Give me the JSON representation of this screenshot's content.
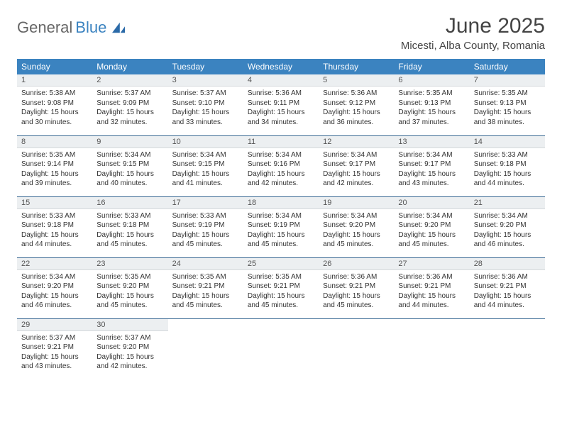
{
  "logo": {
    "part1": "General",
    "part2": "Blue"
  },
  "title": "June 2025",
  "location": "Micesti, Alba County, Romania",
  "header_bg": "#3b83c0",
  "weekdays": [
    "Sunday",
    "Monday",
    "Tuesday",
    "Wednesday",
    "Thursday",
    "Friday",
    "Saturday"
  ],
  "days": [
    {
      "n": "1",
      "sr": "5:38 AM",
      "ss": "9:08 PM",
      "dl": "15 hours and 30 minutes."
    },
    {
      "n": "2",
      "sr": "5:37 AM",
      "ss": "9:09 PM",
      "dl": "15 hours and 32 minutes."
    },
    {
      "n": "3",
      "sr": "5:37 AM",
      "ss": "9:10 PM",
      "dl": "15 hours and 33 minutes."
    },
    {
      "n": "4",
      "sr": "5:36 AM",
      "ss": "9:11 PM",
      "dl": "15 hours and 34 minutes."
    },
    {
      "n": "5",
      "sr": "5:36 AM",
      "ss": "9:12 PM",
      "dl": "15 hours and 36 minutes."
    },
    {
      "n": "6",
      "sr": "5:35 AM",
      "ss": "9:13 PM",
      "dl": "15 hours and 37 minutes."
    },
    {
      "n": "7",
      "sr": "5:35 AM",
      "ss": "9:13 PM",
      "dl": "15 hours and 38 minutes."
    },
    {
      "n": "8",
      "sr": "5:35 AM",
      "ss": "9:14 PM",
      "dl": "15 hours and 39 minutes."
    },
    {
      "n": "9",
      "sr": "5:34 AM",
      "ss": "9:15 PM",
      "dl": "15 hours and 40 minutes."
    },
    {
      "n": "10",
      "sr": "5:34 AM",
      "ss": "9:15 PM",
      "dl": "15 hours and 41 minutes."
    },
    {
      "n": "11",
      "sr": "5:34 AM",
      "ss": "9:16 PM",
      "dl": "15 hours and 42 minutes."
    },
    {
      "n": "12",
      "sr": "5:34 AM",
      "ss": "9:17 PM",
      "dl": "15 hours and 42 minutes."
    },
    {
      "n": "13",
      "sr": "5:34 AM",
      "ss": "9:17 PM",
      "dl": "15 hours and 43 minutes."
    },
    {
      "n": "14",
      "sr": "5:33 AM",
      "ss": "9:18 PM",
      "dl": "15 hours and 44 minutes."
    },
    {
      "n": "15",
      "sr": "5:33 AM",
      "ss": "9:18 PM",
      "dl": "15 hours and 44 minutes."
    },
    {
      "n": "16",
      "sr": "5:33 AM",
      "ss": "9:18 PM",
      "dl": "15 hours and 45 minutes."
    },
    {
      "n": "17",
      "sr": "5:33 AM",
      "ss": "9:19 PM",
      "dl": "15 hours and 45 minutes."
    },
    {
      "n": "18",
      "sr": "5:34 AM",
      "ss": "9:19 PM",
      "dl": "15 hours and 45 minutes."
    },
    {
      "n": "19",
      "sr": "5:34 AM",
      "ss": "9:20 PM",
      "dl": "15 hours and 45 minutes."
    },
    {
      "n": "20",
      "sr": "5:34 AM",
      "ss": "9:20 PM",
      "dl": "15 hours and 45 minutes."
    },
    {
      "n": "21",
      "sr": "5:34 AM",
      "ss": "9:20 PM",
      "dl": "15 hours and 46 minutes."
    },
    {
      "n": "22",
      "sr": "5:34 AM",
      "ss": "9:20 PM",
      "dl": "15 hours and 46 minutes."
    },
    {
      "n": "23",
      "sr": "5:35 AM",
      "ss": "9:20 PM",
      "dl": "15 hours and 45 minutes."
    },
    {
      "n": "24",
      "sr": "5:35 AM",
      "ss": "9:21 PM",
      "dl": "15 hours and 45 minutes."
    },
    {
      "n": "25",
      "sr": "5:35 AM",
      "ss": "9:21 PM",
      "dl": "15 hours and 45 minutes."
    },
    {
      "n": "26",
      "sr": "5:36 AM",
      "ss": "9:21 PM",
      "dl": "15 hours and 45 minutes."
    },
    {
      "n": "27",
      "sr": "5:36 AM",
      "ss": "9:21 PM",
      "dl": "15 hours and 44 minutes."
    },
    {
      "n": "28",
      "sr": "5:36 AM",
      "ss": "9:21 PM",
      "dl": "15 hours and 44 minutes."
    },
    {
      "n": "29",
      "sr": "5:37 AM",
      "ss": "9:21 PM",
      "dl": "15 hours and 43 minutes."
    },
    {
      "n": "30",
      "sr": "5:37 AM",
      "ss": "9:20 PM",
      "dl": "15 hours and 42 minutes."
    }
  ],
  "labels": {
    "sunrise": "Sunrise:",
    "sunset": "Sunset:",
    "daylight": "Daylight:"
  }
}
